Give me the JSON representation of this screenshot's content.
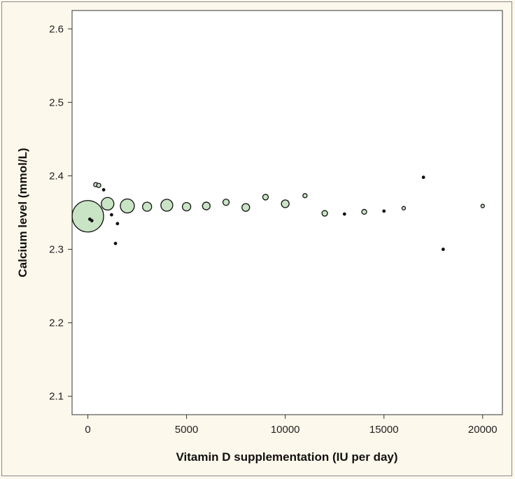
{
  "chart_data": {
    "type": "scatter",
    "xlabel": "Vitamin D supplementation (IU per day)",
    "ylabel": "Calcium level (mmol/L)",
    "xlim": [
      -800,
      21000
    ],
    "ylim": [
      2.075,
      2.625
    ],
    "xticks": [
      0,
      5000,
      10000,
      15000,
      20000
    ],
    "yticks": [
      2.1,
      2.2,
      2.3,
      2.4,
      2.5,
      2.6
    ],
    "x_tick_labels": [
      "0",
      "5000",
      "10000",
      "15000",
      "20000"
    ],
    "y_tick_labels": [
      "2.1",
      "2.2",
      "2.3",
      "2.4",
      "2.5",
      "2.6"
    ],
    "grid": false,
    "marker_color": "#c8e4c4",
    "marker_edge": "#111111",
    "series": [
      {
        "points": [
          {
            "x": 0,
            "y": 2.345,
            "size": 22.5
          },
          {
            "x": 100,
            "y": 2.341,
            "size": 2
          },
          {
            "x": 200,
            "y": 2.339,
            "size": 2
          },
          {
            "x": 400,
            "y": 2.388,
            "size": 3
          },
          {
            "x": 550,
            "y": 2.387,
            "size": 3
          },
          {
            "x": 800,
            "y": 2.381,
            "size": 2
          },
          {
            "x": 1000,
            "y": 2.362,
            "size": 9
          },
          {
            "x": 1200,
            "y": 2.347,
            "size": 2
          },
          {
            "x": 1400,
            "y": 2.308,
            "size": 2
          },
          {
            "x": 1500,
            "y": 2.335,
            "size": 2
          },
          {
            "x": 2000,
            "y": 2.359,
            "size": 10
          },
          {
            "x": 3000,
            "y": 2.358,
            "size": 6.5
          },
          {
            "x": 4000,
            "y": 2.36,
            "size": 8.5
          },
          {
            "x": 5000,
            "y": 2.358,
            "size": 6
          },
          {
            "x": 6000,
            "y": 2.359,
            "size": 5.5
          },
          {
            "x": 7000,
            "y": 2.364,
            "size": 4.5
          },
          {
            "x": 8000,
            "y": 2.357,
            "size": 5.5
          },
          {
            "x": 9000,
            "y": 2.371,
            "size": 4
          },
          {
            "x": 10000,
            "y": 2.362,
            "size": 5.5
          },
          {
            "x": 11000,
            "y": 2.373,
            "size": 3
          },
          {
            "x": 12000,
            "y": 2.349,
            "size": 4
          },
          {
            "x": 13000,
            "y": 2.348,
            "size": 2
          },
          {
            "x": 14000,
            "y": 2.351,
            "size": 3.5
          },
          {
            "x": 15000,
            "y": 2.352,
            "size": 2
          },
          {
            "x": 16000,
            "y": 2.356,
            "size": 2.5
          },
          {
            "x": 17000,
            "y": 2.398,
            "size": 2
          },
          {
            "x": 18000,
            "y": 2.3,
            "size": 2
          },
          {
            "x": 20000,
            "y": 2.359,
            "size": 2.5
          }
        ]
      }
    ]
  }
}
